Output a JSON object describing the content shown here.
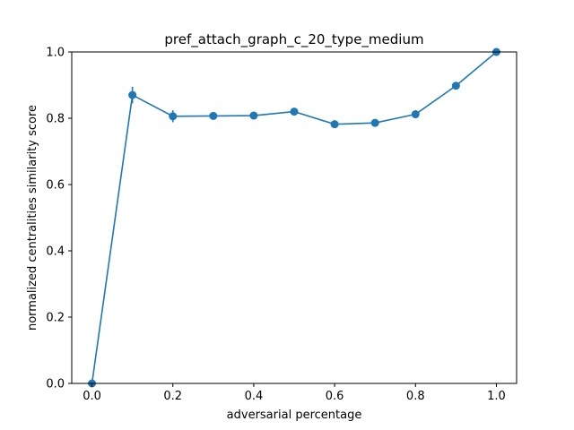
{
  "chart_data": {
    "type": "line",
    "title": "pref_attach_graph_c_20_type_medium",
    "xlabel": "adversarial percentage",
    "ylabel": "normalized centralities similarity score",
    "xlim": [
      -0.05,
      1.05
    ],
    "ylim": [
      0.0,
      1.0
    ],
    "xticks": [
      0.0,
      0.2,
      0.4,
      0.6,
      0.8,
      1.0
    ],
    "xtick_labels": [
      "0.0",
      "0.2",
      "0.4",
      "0.6",
      "0.8",
      "1.0"
    ],
    "yticks": [
      0.0,
      0.2,
      0.4,
      0.6,
      0.8,
      1.0
    ],
    "ytick_labels": [
      "0.0",
      "0.2",
      "0.4",
      "0.6",
      "0.8",
      "1.0"
    ],
    "grid": false,
    "color": "#1f77b4",
    "marker": "circle",
    "series": [
      {
        "x": [
          0.0,
          0.1,
          0.2,
          0.3,
          0.4,
          0.5,
          0.6,
          0.7,
          0.8,
          0.9,
          1.0
        ],
        "y": [
          0.0,
          0.87,
          0.806,
          0.807,
          0.808,
          0.82,
          0.782,
          0.786,
          0.812,
          0.898,
          1.0
        ],
        "yerr": [
          0.0,
          0.025,
          0.018,
          0.006,
          0.006,
          0.006,
          0.006,
          0.006,
          0.008,
          0.006,
          0.004
        ]
      }
    ]
  }
}
